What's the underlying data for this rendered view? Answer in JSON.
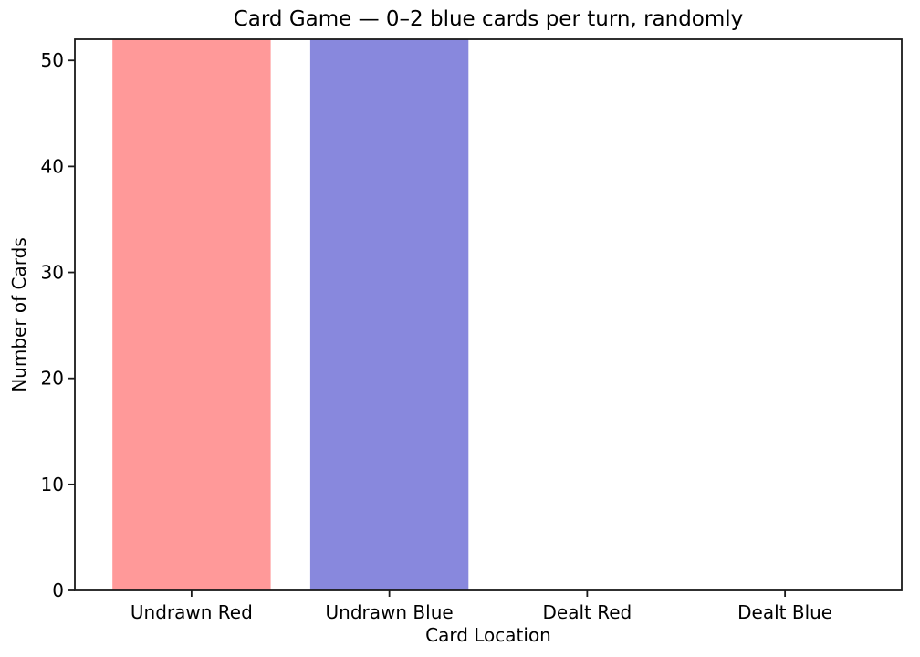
{
  "chart_data": {
    "type": "bar",
    "title": "Card Game — 0–2 blue cards per turn, randomly",
    "xlabel": "Card Location",
    "ylabel": "Number of Cards",
    "categories": [
      "Undrawn Red",
      "Undrawn Blue",
      "Dealt Red",
      "Dealt Blue"
    ],
    "values": [
      52,
      52,
      0,
      0
    ],
    "bar_colors": [
      "#ff9999",
      "#8888dd",
      "#ff9999",
      "#8888dd"
    ],
    "ylim": [
      0,
      52
    ],
    "yticks": [
      0,
      10,
      20,
      30,
      40,
      50
    ],
    "grid": false,
    "legend": "none",
    "axis_color": "#1a1a1a",
    "background": "#ffffff"
  }
}
